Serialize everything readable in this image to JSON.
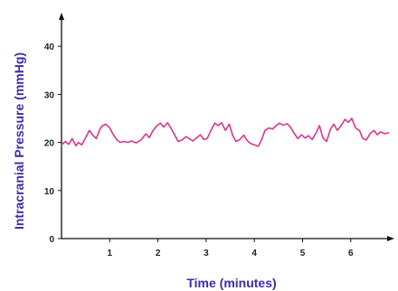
{
  "chart_data": {
    "type": "line",
    "title": "",
    "xlabel": "Time (minutes)",
    "ylabel": "Intracranial Pressure (mmHg)",
    "xlim": [
      0,
      7
    ],
    "ylim": [
      0,
      45
    ],
    "x_ticks": [
      1,
      2,
      3,
      4,
      5,
      6
    ],
    "y_ticks": [
      0,
      10,
      20,
      30,
      40
    ],
    "grid": false,
    "legend": "none",
    "series": [
      {
        "color": "#e0338f",
        "x": [
          0.0,
          0.08,
          0.15,
          0.22,
          0.3,
          0.35,
          0.42,
          0.5,
          0.58,
          0.65,
          0.72,
          0.8,
          0.85,
          0.92,
          1.0,
          1.08,
          1.15,
          1.22,
          1.3,
          1.38,
          1.45,
          1.55,
          1.65,
          1.75,
          1.82,
          1.9,
          1.98,
          2.05,
          2.12,
          2.2,
          2.28,
          2.35,
          2.42,
          2.5,
          2.58,
          2.65,
          2.72,
          2.8,
          2.88,
          2.95,
          3.02,
          3.1,
          3.18,
          3.25,
          3.32,
          3.4,
          3.48,
          3.55,
          3.62,
          3.7,
          3.78,
          3.85,
          3.92,
          4.0,
          4.08,
          4.15,
          4.22,
          4.3,
          4.38,
          4.45,
          4.52,
          4.6,
          4.68,
          4.75,
          4.82,
          4.9,
          4.98,
          5.05,
          5.12,
          5.2,
          5.28,
          5.35,
          5.42,
          5.5,
          5.58,
          5.65,
          5.72,
          5.8,
          5.88,
          5.95,
          6.02,
          6.1,
          6.18,
          6.25,
          6.32,
          6.4,
          6.48,
          6.55,
          6.62,
          6.7,
          6.78
        ],
        "y": [
          19.5,
          20.2,
          19.6,
          20.8,
          19.3,
          20.0,
          19.5,
          21.0,
          22.5,
          21.5,
          20.8,
          22.8,
          23.5,
          23.8,
          23.0,
          21.5,
          20.5,
          20.0,
          20.2,
          20.0,
          20.3,
          19.9,
          20.5,
          21.8,
          21.0,
          22.5,
          23.5,
          24.0,
          23.2,
          24.1,
          22.8,
          21.5,
          20.2,
          20.5,
          21.2,
          20.8,
          20.3,
          20.9,
          21.6,
          20.6,
          20.8,
          22.5,
          24.0,
          23.5,
          24.1,
          22.5,
          23.8,
          21.5,
          20.2,
          20.6,
          21.5,
          20.4,
          19.8,
          19.5,
          19.2,
          20.5,
          22.5,
          23.0,
          22.8,
          23.5,
          24.0,
          23.6,
          23.9,
          23.2,
          22.0,
          20.8,
          21.6,
          20.9,
          21.4,
          20.6,
          22.0,
          23.5,
          21.0,
          20.2,
          22.8,
          23.8,
          22.5,
          23.5,
          24.8,
          24.2,
          25.0,
          23.0,
          22.5,
          20.8,
          20.5,
          21.8,
          22.5,
          21.6,
          22.2,
          21.8,
          22.0
        ]
      }
    ]
  }
}
